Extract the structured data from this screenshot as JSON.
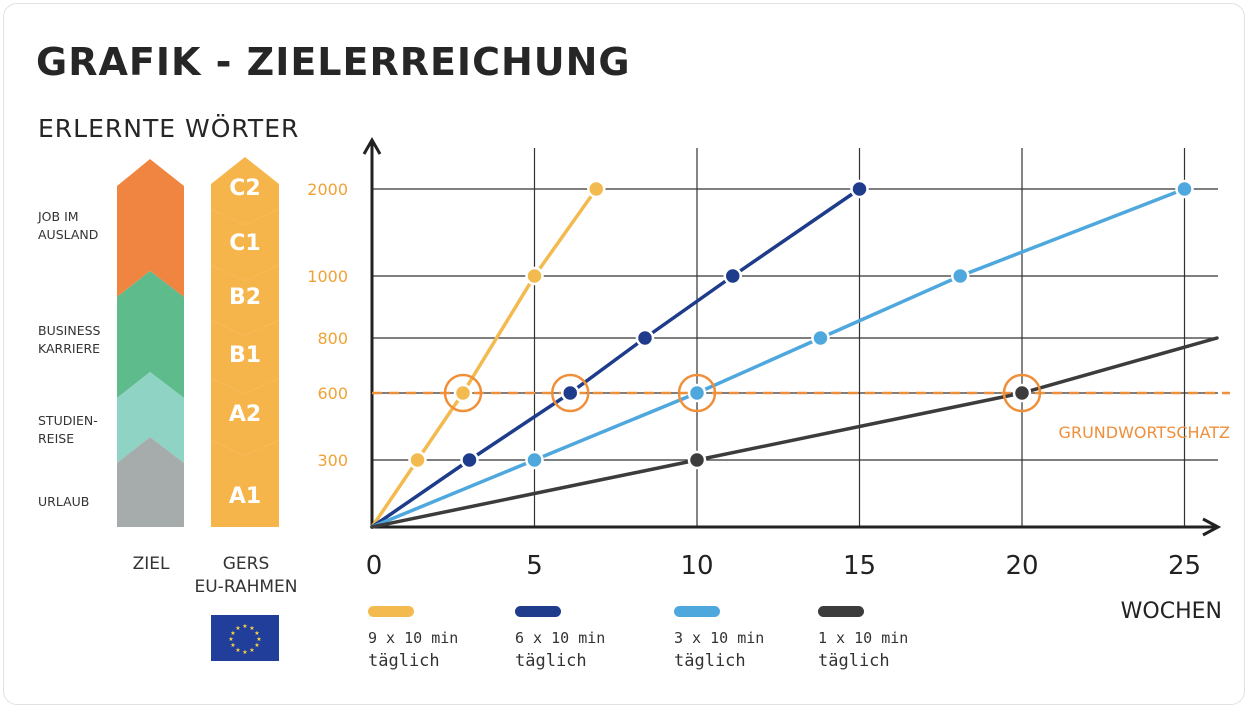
{
  "title": "GRAFIK - ZIELERREICHUNG",
  "subtitle": "ERLERNTE WÖRTER",
  "ziel": {
    "caption": "ZIEL",
    "levels": [
      {
        "label_line1": "JOB IM",
        "label_line2": "AUSLAND",
        "color": "#f08541"
      },
      {
        "label_line1": "BUSINESS",
        "label_line2": "KARRIERE",
        "color": "#5dbb8c"
      },
      {
        "label_line1": "STUDIEN-",
        "label_line2": "REISE",
        "color": "#8fd3c5"
      },
      {
        "label_line1": "URLAUB",
        "label_line2": "",
        "color": "#a6abab"
      }
    ]
  },
  "gers": {
    "caption_line1": "GERS",
    "caption_line2": "EU-RAHMEN",
    "color": "#f5b54a",
    "levels": [
      "C2",
      "C1",
      "B2",
      "B1",
      "A2",
      "A1"
    ]
  },
  "chart_data": {
    "type": "line",
    "xlabel": "WOCHEN",
    "ylabel": "",
    "x_ticks": [
      0,
      5,
      10,
      15,
      20,
      25
    ],
    "y_ticks": [
      300,
      600,
      800,
      1000,
      2000
    ],
    "xlim": [
      0,
      26
    ],
    "y_scale": "categorical-spaced (300, 600, 800, 1000, 2000)",
    "grid": true,
    "reference_line": {
      "y": 600,
      "label": "GRUNDWORTSCHATZ",
      "color": "#f08f3a"
    },
    "series": [
      {
        "name": "9 x 10 min täglich",
        "color": "#f3bb4f",
        "points": [
          [
            0,
            0
          ],
          [
            1.4,
            300
          ],
          [
            2.8,
            600
          ],
          [
            5,
            1000
          ],
          [
            6.9,
            2000
          ]
        ],
        "highlight_x": 2.8
      },
      {
        "name": "6 x 10 min täglich",
        "color": "#1e3c8b",
        "points": [
          [
            0,
            0
          ],
          [
            3,
            300
          ],
          [
            6.1,
            600
          ],
          [
            8.4,
            800
          ],
          [
            11.1,
            1000
          ],
          [
            15,
            2000
          ]
        ],
        "highlight_x": 6.1
      },
      {
        "name": "3 x 10 min täglich",
        "color": "#4fa8dd",
        "points": [
          [
            0,
            0
          ],
          [
            5,
            300
          ],
          [
            10,
            600
          ],
          [
            13.8,
            800
          ],
          [
            18.1,
            1000
          ],
          [
            25,
            2000
          ]
        ],
        "highlight_x": 10
      },
      {
        "name": "1 x 10 min täglich",
        "color": "#3c3c3c",
        "points": [
          [
            0,
            0
          ],
          [
            10,
            300
          ],
          [
            20,
            600
          ],
          [
            26,
            800
          ]
        ],
        "highlight_x": 20
      }
    ]
  },
  "legend": [
    {
      "line1": "9 x 10 min",
      "line2": "täglich",
      "color": "#f3bb4f"
    },
    {
      "line1": "6 x 10 min",
      "line2": "täglich",
      "color": "#1e3c8b"
    },
    {
      "line1": "3 x 10 min",
      "line2": "täglich",
      "color": "#4fa8dd"
    },
    {
      "line1": "1 x 10 min",
      "line2": "täglich",
      "color": "#3c3c3c"
    }
  ]
}
